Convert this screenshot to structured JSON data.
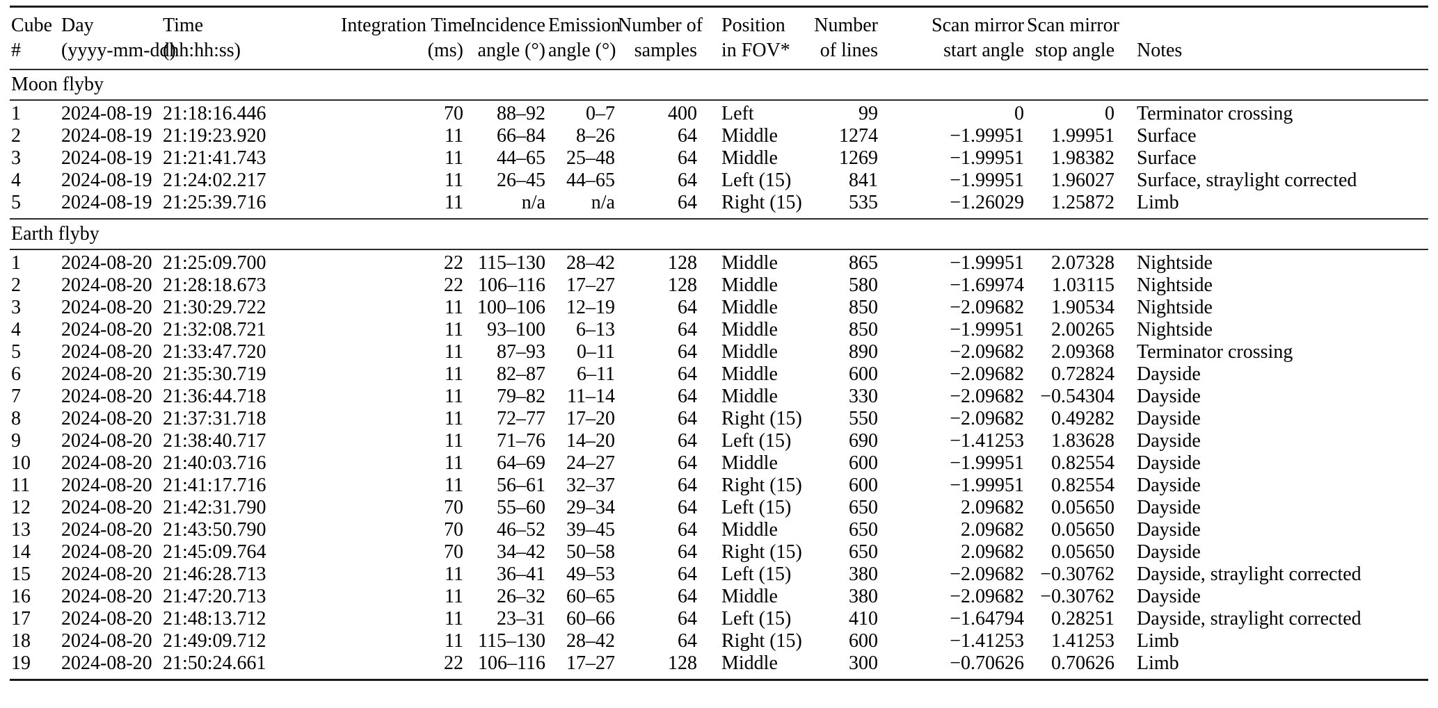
{
  "page": {
    "background": "#ffffff",
    "text_color": "#000000",
    "rule_color": "#1b1b1b"
  },
  "table": {
    "columns": [
      {
        "key": "cube",
        "line1": "Cube",
        "line2": "#",
        "align": "left"
      },
      {
        "key": "day",
        "line1": "Day",
        "line2": "(yyyy-mm-dd)",
        "align": "left"
      },
      {
        "key": "time",
        "line1": "Time",
        "line2": "(hh:hh:ss)",
        "align": "left"
      },
      {
        "key": "integration_time",
        "line1": "Integration Time",
        "line2": "(ms)",
        "align": "right"
      },
      {
        "key": "incidence_angle",
        "line1": "Incidence",
        "line2": "angle (°)",
        "align": "right"
      },
      {
        "key": "emission_angle",
        "line1": "Emission",
        "line2": "angle (°)",
        "align": "right"
      },
      {
        "key": "num_samples",
        "line1": "Number of",
        "line2": "samples",
        "align": "right"
      },
      {
        "key": "position_fov",
        "line1": "Position",
        "line2": "in FOV*",
        "align": "left"
      },
      {
        "key": "num_lines",
        "line1": "Number",
        "line2": "of lines",
        "align": "right"
      },
      {
        "key": "scan_start",
        "line1": "Scan mirror",
        "line2": "start angle",
        "align": "right"
      },
      {
        "key": "scan_stop",
        "line1": "Scan mirror",
        "line2": "stop angle",
        "align": "right"
      },
      {
        "key": "notes",
        "line1": "Notes",
        "line2": "",
        "align": "left"
      }
    ],
    "sections": [
      {
        "title": "Moon flyby",
        "rows": [
          [
            "1",
            "2024-08-19",
            "21:18:16.446",
            "70",
            "88–92",
            "0–7",
            "400",
            "Left",
            "99",
            "0",
            "0",
            "Terminator crossing"
          ],
          [
            "2",
            "2024-08-19",
            "21:19:23.920",
            "11",
            "66–84",
            "8–26",
            "64",
            "Middle",
            "1274",
            "−1.99951",
            "1.99951",
            "Surface"
          ],
          [
            "3",
            "2024-08-19",
            "21:21:41.743",
            "11",
            "44–65",
            "25–48",
            "64",
            "Middle",
            "1269",
            "−1.99951",
            "1.98382",
            "Surface"
          ],
          [
            "4",
            "2024-08-19",
            "21:24:02.217",
            "11",
            "26–45",
            "44–65",
            "64",
            "Left (15)",
            "841",
            "−1.99951",
            "1.96027",
            "Surface, straylight corrected"
          ],
          [
            "5",
            "2024-08-19",
            "21:25:39.716",
            "11",
            "n/a",
            "n/a",
            "64",
            "Right (15)",
            "535",
            "−1.26029",
            "1.25872",
            "Limb"
          ]
        ]
      },
      {
        "title": "Earth flyby",
        "rows": [
          [
            "1",
            "2024-08-20",
            "21:25:09.700",
            "22",
            "115–130",
            "28–42",
            "128",
            "Middle",
            "865",
            "−1.99951",
            "2.07328",
            "Nightside"
          ],
          [
            "2",
            "2024-08-20",
            "21:28:18.673",
            "22",
            "106–116",
            "17–27",
            "128",
            "Middle",
            "580",
            "−1.69974",
            "1.03115",
            "Nightside"
          ],
          [
            "3",
            "2024-08-20",
            "21:30:29.722",
            "11",
            "100–106",
            "12–19",
            "64",
            "Middle",
            "850",
            "−2.09682",
            "1.90534",
            "Nightside"
          ],
          [
            "4",
            "2024-08-20",
            "21:32:08.721",
            "11",
            "93–100",
            "6–13",
            "64",
            "Middle",
            "850",
            "−1.99951",
            "2.00265",
            "Nightside"
          ],
          [
            "5",
            "2024-08-20",
            "21:33:47.720",
            "11",
            "87–93",
            "0–11",
            "64",
            "Middle",
            "890",
            "−2.09682",
            "2.09368",
            "Terminator crossing"
          ],
          [
            "6",
            "2024-08-20",
            "21:35:30.719",
            "11",
            "82–87",
            "6–11",
            "64",
            "Middle",
            "600",
            "−2.09682",
            "0.72824",
            "Dayside"
          ],
          [
            "7",
            "2024-08-20",
            "21:36:44.718",
            "11",
            "79–82",
            "11–14",
            "64",
            "Middle",
            "330",
            "−2.09682",
            "−0.54304",
            "Dayside"
          ],
          [
            "8",
            "2024-08-20",
            "21:37:31.718",
            "11",
            "72–77",
            "17–20",
            "64",
            "Right (15)",
            "550",
            "−2.09682",
            "0.49282",
            "Dayside"
          ],
          [
            "9",
            "2024-08-20",
            "21:38:40.717",
            "11",
            "71–76",
            "14–20",
            "64",
            "Left (15)",
            "690",
            "−1.41253",
            "1.83628",
            "Dayside"
          ],
          [
            "10",
            "2024-08-20",
            "21:40:03.716",
            "11",
            "64–69",
            "24–27",
            "64",
            "Middle",
            "600",
            "−1.99951",
            "0.82554",
            "Dayside"
          ],
          [
            "11",
            "2024-08-20",
            "21:41:17.716",
            "11",
            "56–61",
            "32–37",
            "64",
            "Right (15)",
            "600",
            "−1.99951",
            "0.82554",
            "Dayside"
          ],
          [
            "12",
            "2024-08-20",
            "21:42:31.790",
            "70",
            "55–60",
            "29–34",
            "64",
            "Left (15)",
            "650",
            "2.09682",
            "0.05650",
            "Dayside"
          ],
          [
            "13",
            "2024-08-20",
            "21:43:50.790",
            "70",
            "46–52",
            "39–45",
            "64",
            "Middle",
            "650",
            "2.09682",
            "0.05650",
            "Dayside"
          ],
          [
            "14",
            "2024-08-20",
            "21:45:09.764",
            "70",
            "34–42",
            "50–58",
            "64",
            "Right (15)",
            "650",
            "2.09682",
            "0.05650",
            "Dayside"
          ],
          [
            "15",
            "2024-08-20",
            "21:46:28.713",
            "11",
            "36–41",
            "49–53",
            "64",
            "Left (15)",
            "380",
            "−2.09682",
            "−0.30762",
            "Dayside, straylight corrected"
          ],
          [
            "16",
            "2024-08-20",
            "21:47:20.713",
            "11",
            "26–32",
            "60–65",
            "64",
            "Middle",
            "380",
            "−2.09682",
            "−0.30762",
            "Dayside"
          ],
          [
            "17",
            "2024-08-20",
            "21:48:13.712",
            "11",
            "23–31",
            "60–66",
            "64",
            "Left (15)",
            "410",
            "−1.64794",
            "0.28251",
            "Dayside, straylight corrected"
          ],
          [
            "18",
            "2024-08-20",
            "21:49:09.712",
            "11",
            "115–130",
            "28–42",
            "64",
            "Right (15)",
            "600",
            "−1.41253",
            "1.41253",
            "Limb"
          ],
          [
            "19",
            "2024-08-20",
            "21:50:24.661",
            "22",
            "106–116",
            "17–27",
            "128",
            "Middle",
            "300",
            "−0.70626",
            "0.70626",
            "Limb"
          ]
        ]
      }
    ]
  }
}
